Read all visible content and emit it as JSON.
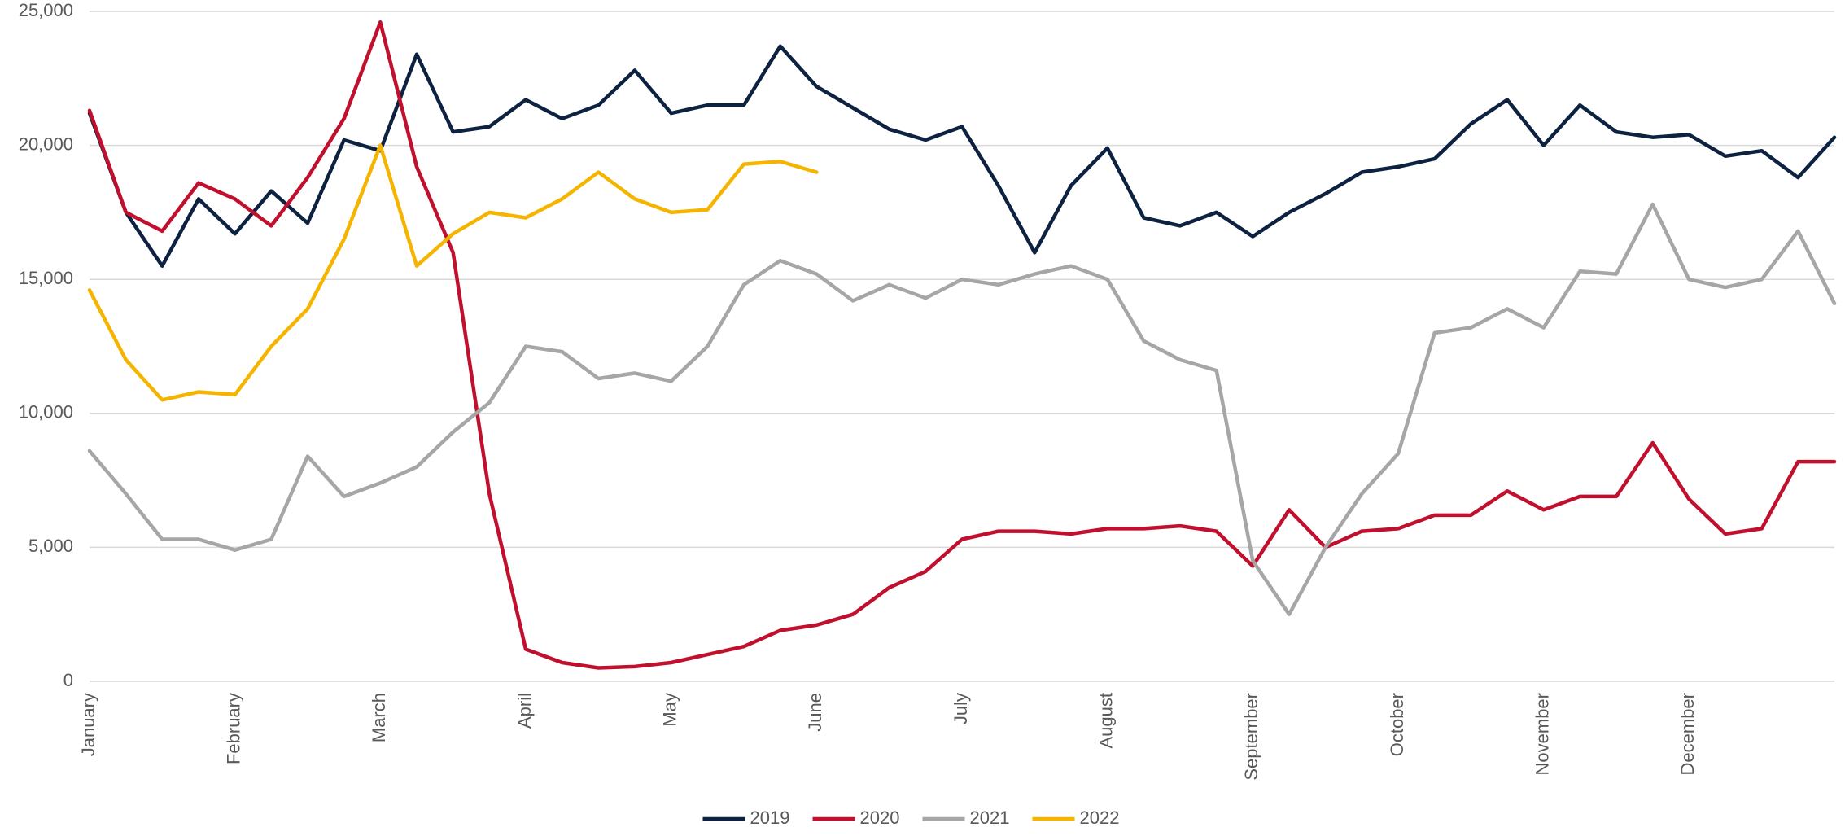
{
  "chart_data": {
    "type": "line",
    "categories": [
      "January",
      null,
      null,
      null,
      "February",
      null,
      null,
      null,
      "March",
      null,
      null,
      null,
      "April",
      null,
      null,
      null,
      "May",
      null,
      null,
      null,
      "June",
      null,
      null,
      null,
      "July",
      null,
      null,
      null,
      "August",
      null,
      null,
      null,
      "September",
      null,
      null,
      null,
      "October",
      null,
      null,
      null,
      "November",
      null,
      null,
      null,
      "December",
      null,
      null,
      null,
      null
    ],
    "series": [
      {
        "name": "2019",
        "color": "#0d2240",
        "values": [
          21200,
          17500,
          15500,
          18000,
          16700,
          18300,
          17100,
          20200,
          19800,
          23400,
          20500,
          20700,
          21700,
          21000,
          21500,
          22800,
          21200,
          21500,
          21500,
          23700,
          22200,
          21400,
          20600,
          20200,
          20700,
          18500,
          16000,
          18500,
          19900,
          17300,
          17000,
          17500,
          16600,
          17500,
          18200,
          19000,
          19200,
          19500,
          20800,
          21700,
          20000,
          21500,
          20500,
          20300,
          20400,
          19600,
          19800,
          18800,
          20300
        ]
      },
      {
        "name": "2020",
        "color": "#c0102e",
        "values": [
          21300,
          17500,
          16800,
          18600,
          18000,
          17000,
          18800,
          21000,
          24600,
          19200,
          16000,
          7000,
          1200,
          700,
          500,
          550,
          700,
          1000,
          1300,
          1900,
          2100,
          2500,
          3500,
          4100,
          5300,
          5600,
          5600,
          5500,
          5700,
          5700,
          5800,
          5600,
          4300,
          6400,
          5000,
          5600,
          5700,
          6200,
          6200,
          7100,
          6400,
          6900,
          6900,
          8900,
          6800,
          5500,
          5700,
          8200,
          8200
        ]
      },
      {
        "name": "2021",
        "color": "#a6a6a6",
        "values": [
          8600,
          7000,
          5300,
          5300,
          4900,
          5300,
          8400,
          6900,
          7400,
          8000,
          9300,
          10400,
          12500,
          12300,
          11300,
          11500,
          11200,
          12500,
          14800,
          15700,
          15200,
          14200,
          14800,
          14300,
          15000,
          14800,
          15200,
          15500,
          15000,
          12700,
          12000,
          11600,
          4500,
          2500,
          5000,
          7000,
          8500,
          13000,
          13200,
          13900,
          13200,
          15300,
          15200,
          17800,
          15000,
          14700,
          15000,
          16800,
          14100
        ]
      },
      {
        "name": "2022",
        "color": "#f5b400",
        "values": [
          14600,
          12000,
          10500,
          10800,
          10700,
          12500,
          13900,
          16500,
          20000,
          15500,
          16700,
          17500,
          17300,
          18000,
          19000,
          18000,
          17500,
          17600,
          19300,
          19400,
          19000,
          null,
          null,
          null,
          null,
          null,
          null,
          null,
          null,
          null,
          null,
          null,
          null,
          null,
          null,
          null,
          null,
          null,
          null,
          null,
          null,
          null,
          null,
          null,
          null,
          null,
          null,
          null,
          null
        ]
      }
    ],
    "ylim": [
      0,
      25000
    ],
    "yticks": [
      0,
      {
        "value": 5000,
        "label": "5,000"
      },
      {
        "value": 10000,
        "label": "10,000"
      },
      {
        "value": 15000,
        "label": "15,000"
      },
      {
        "value": 20000,
        "label": "20,000"
      },
      {
        "value": 25000,
        "label": "25,000"
      }
    ],
    "grid": true,
    "legend": "bottom"
  }
}
